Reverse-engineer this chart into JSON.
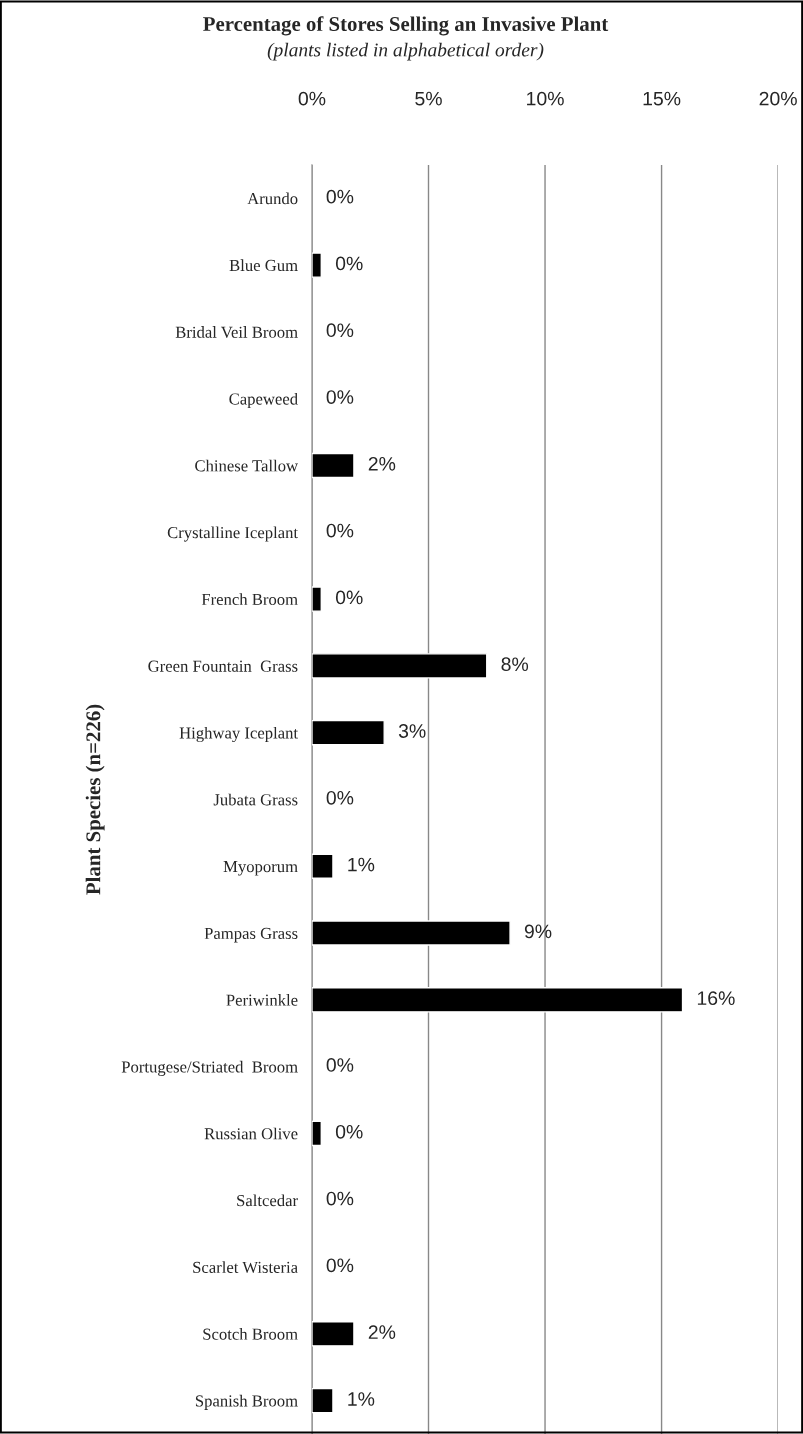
{
  "chart_data": {
    "type": "bar",
    "orientation": "horizontal",
    "title": "Percentage of Stores Selling an Invasive Plant",
    "subtitle": "(plants listed in alphabetical order)",
    "ylabel": "Plant Species (n=226)",
    "categories": [
      "Arundo",
      "Blue Gum",
      "Bridal Veil Broom",
      "Capeweed",
      "Chinese Tallow",
      "Crystalline Iceplant",
      "French Broom",
      "Green Fountain  Grass",
      "Highway Iceplant",
      "Jubata Grass",
      "Myoporum",
      "Pampas Grass",
      "Periwinkle",
      "Portugese/Striated  Broom",
      "Russian Olive",
      "Saltcedar",
      "Scarlet Wisteria",
      "Scotch Broom",
      "Spanish Broom"
    ],
    "values": [
      0,
      0.4,
      0,
      0,
      1.8,
      0,
      0.4,
      7.5,
      3.1,
      0,
      0.9,
      8.5,
      15.9,
      0,
      0.4,
      0,
      0,
      1.8,
      0.9
    ],
    "value_labels": [
      "0%",
      "0%",
      "0%",
      "0%",
      "2%",
      "0%",
      "0%",
      "8%",
      "3%",
      "0%",
      "1%",
      "9%",
      "16%",
      "0%",
      "0%",
      "0%",
      "0%",
      "2%",
      "1%"
    ],
    "color": "#000000",
    "xlim": [
      0,
      20
    ],
    "xticks": [
      {
        "value": 0,
        "label": "0%"
      },
      {
        "value": 5,
        "label": "5%"
      },
      {
        "value": 10,
        "label": "10%"
      },
      {
        "value": 15,
        "label": "15%"
      },
      {
        "value": 20,
        "label": "20%"
      }
    ],
    "grid": "x",
    "legend": false
  }
}
